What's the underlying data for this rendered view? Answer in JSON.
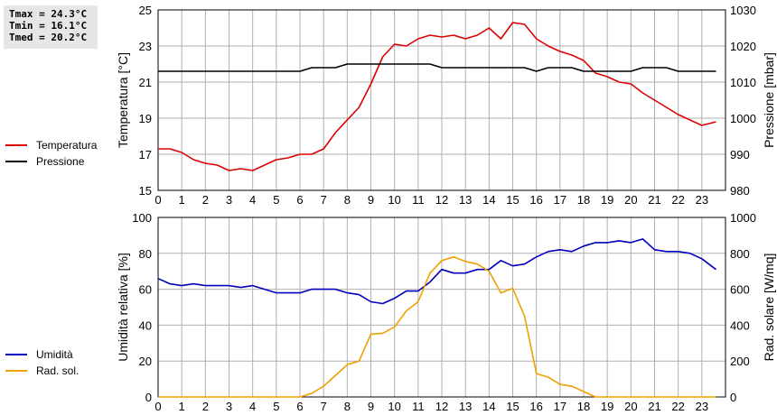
{
  "summary": {
    "tmax": "Tmax = 24.3°C",
    "tmin": "Tmin = 16.1°C",
    "tmed": "Tmed = 20.2°C"
  },
  "colors": {
    "temperature": "#dd0000",
    "pressure": "#000000",
    "humidity": "#0000c0",
    "solar": "#f0a000",
    "grid": "#b0b0b0"
  },
  "legend_top": [
    {
      "label": "Temperatura",
      "color": "#dd0000"
    },
    {
      "label": "Pressione",
      "color": "#000000"
    }
  ],
  "legend_bottom": [
    {
      "label": "Umidità",
      "color": "#0000c0"
    },
    {
      "label": "Rad. sol.",
      "color": "#f0a000"
    }
  ],
  "chart_data": [
    {
      "type": "line",
      "grid": true,
      "x_ticks": [
        "0",
        "1",
        "2",
        "3",
        "4",
        "5",
        "6",
        "7",
        "8",
        "9",
        "10",
        "11",
        "12",
        "13",
        "14",
        "15",
        "16",
        "17",
        "18",
        "19",
        "20",
        "21",
        "22",
        "23"
      ],
      "xlim": [
        0,
        24
      ],
      "y_left": {
        "label": "Temperatura [°C]",
        "ylim": [
          15,
          25
        ],
        "ticks": [
          "15",
          "17",
          "19",
          "21",
          "23",
          "25"
        ]
      },
      "y_right": {
        "label": "Pressione [mbar]",
        "ylim": [
          980,
          1030
        ],
        "ticks": [
          "980",
          "990",
          "1000",
          "1010",
          "1020",
          "1030"
        ]
      },
      "series": [
        {
          "name": "Temperatura",
          "axis": "left",
          "color": "#dd0000",
          "x": [
            0,
            0.5,
            1,
            1.5,
            2,
            2.5,
            3,
            3.5,
            4,
            4.5,
            5,
            5.5,
            6,
            6.5,
            7,
            7.5,
            8,
            8.5,
            9,
            9.5,
            10,
            10.5,
            11,
            11.5,
            12,
            12.5,
            13,
            13.5,
            14,
            14.5,
            15,
            15.5,
            16,
            16.5,
            17,
            17.5,
            18,
            18.5,
            19,
            19.5,
            20,
            20.5,
            21,
            21.5,
            22,
            22.5,
            23,
            23.6
          ],
          "y": [
            17.3,
            17.3,
            17.1,
            16.7,
            16.5,
            16.4,
            16.1,
            16.2,
            16.1,
            16.4,
            16.7,
            16.8,
            17.0,
            17.0,
            17.3,
            18.2,
            18.9,
            19.6,
            20.9,
            22.4,
            23.1,
            23.0,
            23.4,
            23.6,
            23.5,
            23.6,
            23.4,
            23.6,
            24.0,
            23.4,
            24.3,
            24.2,
            23.4,
            23.0,
            22.7,
            22.5,
            22.2,
            21.5,
            21.3,
            21.0,
            20.9,
            20.4,
            20.0,
            19.6,
            19.2,
            18.9,
            18.6,
            18.8
          ]
        },
        {
          "name": "Pressione",
          "axis": "right",
          "color": "#000000",
          "x": [
            0,
            0.5,
            1,
            1.5,
            2,
            2.5,
            3,
            3.5,
            4,
            4.5,
            5,
            5.5,
            6,
            6.5,
            7,
            7.5,
            8,
            8.5,
            9,
            9.5,
            10,
            10.5,
            11,
            11.5,
            12,
            12.5,
            13,
            13.5,
            14,
            14.5,
            15,
            15.5,
            16,
            16.5,
            17,
            17.5,
            18,
            18.5,
            19,
            19.5,
            20,
            20.5,
            21,
            21.5,
            22,
            22.5,
            23,
            23.6
          ],
          "y": [
            1013,
            1013,
            1013,
            1013,
            1013,
            1013,
            1013,
            1013,
            1013,
            1013,
            1013,
            1013,
            1013,
            1014,
            1014,
            1014,
            1015,
            1015,
            1015,
            1015,
            1015,
            1015,
            1015,
            1015,
            1014,
            1014,
            1014,
            1014,
            1014,
            1014,
            1014,
            1014,
            1013,
            1014,
            1014,
            1014,
            1013,
            1013,
            1013,
            1013,
            1013,
            1014,
            1014,
            1014,
            1013,
            1013,
            1013,
            1013
          ]
        }
      ]
    },
    {
      "type": "line",
      "grid": true,
      "x_ticks": [
        "0",
        "1",
        "2",
        "3",
        "4",
        "5",
        "6",
        "7",
        "8",
        "9",
        "10",
        "11",
        "12",
        "13",
        "14",
        "15",
        "16",
        "17",
        "18",
        "19",
        "20",
        "21",
        "22",
        "23"
      ],
      "xlim": [
        0,
        24
      ],
      "y_left": {
        "label": "Umidità relativa [%]",
        "ylim": [
          0,
          100
        ],
        "ticks": [
          "0",
          "20",
          "40",
          "60",
          "80",
          "100"
        ]
      },
      "y_right": {
        "label": "Rad. solare [W/mq]",
        "ylim": [
          0,
          1000
        ],
        "ticks": [
          "0",
          "200",
          "400",
          "600",
          "800",
          "1000"
        ]
      },
      "series": [
        {
          "name": "Umidità",
          "axis": "left",
          "color": "#0000c0",
          "x": [
            0,
            0.5,
            1,
            1.5,
            2,
            2.5,
            3,
            3.5,
            4,
            4.5,
            5,
            5.5,
            6,
            6.5,
            7,
            7.5,
            8,
            8.5,
            9,
            9.5,
            10,
            10.5,
            11,
            11.5,
            12,
            12.5,
            13,
            13.5,
            14,
            14.5,
            15,
            15.5,
            16,
            16.5,
            17,
            17.5,
            18,
            18.5,
            19,
            19.5,
            20,
            20.5,
            21,
            21.5,
            22,
            22.5,
            23,
            23.6
          ],
          "y": [
            66,
            63,
            62,
            63,
            62,
            62,
            62,
            61,
            62,
            60,
            58,
            58,
            58,
            60,
            60,
            60,
            58,
            57,
            53,
            52,
            55,
            59,
            59,
            64,
            71,
            69,
            69,
            71,
            71,
            76,
            73,
            74,
            78,
            81,
            82,
            81,
            84,
            86,
            86,
            87,
            86,
            88,
            82,
            81,
            81,
            80,
            77,
            71
          ]
        },
        {
          "name": "Rad. sol.",
          "axis": "right",
          "color": "#f0a000",
          "x": [
            0,
            0.5,
            1,
            1.5,
            2,
            2.5,
            3,
            3.5,
            4,
            4.5,
            5,
            5.5,
            6,
            6.5,
            7,
            7.5,
            8,
            8.5,
            9,
            9.5,
            10,
            10.5,
            11,
            11.5,
            12,
            12.5,
            13,
            13.5,
            14,
            14.5,
            15,
            15.5,
            16,
            16.5,
            17,
            17.5,
            18,
            18.5,
            19,
            19.5,
            20,
            20.5,
            21,
            21.5,
            22,
            22.5,
            23,
            23.6
          ],
          "y": [
            0,
            0,
            0,
            0,
            0,
            0,
            0,
            0,
            0,
            0,
            0,
            0,
            0,
            20,
            60,
            120,
            180,
            200,
            350,
            355,
            390,
            480,
            530,
            690,
            760,
            780,
            755,
            740,
            700,
            580,
            605,
            450,
            130,
            110,
            70,
            60,
            30,
            0,
            0,
            0,
            0,
            0,
            0,
            0,
            0,
            0,
            0,
            0
          ]
        }
      ]
    }
  ]
}
